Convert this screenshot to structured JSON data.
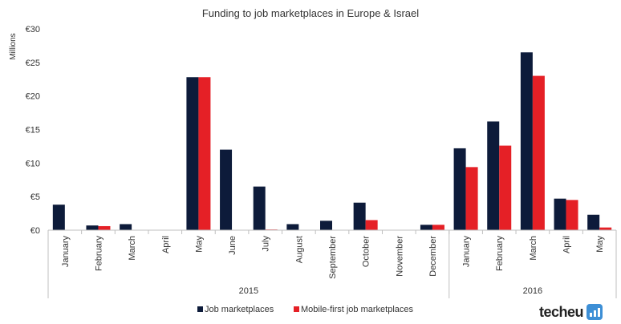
{
  "chart_data": {
    "type": "bar",
    "title": "Funding to job marketplaces in Europe & Israel",
    "ylabel": "Millions",
    "ylim": [
      0,
      30
    ],
    "yticks": [
      0,
      5,
      10,
      15,
      20,
      25,
      30
    ],
    "ytick_labels": [
      "€0",
      "€5",
      "€10",
      "€15",
      "€20",
      "€25",
      "€30"
    ],
    "categories": [
      "January",
      "February",
      "March",
      "April",
      "May",
      "June",
      "July",
      "August",
      "September",
      "October",
      "November",
      "December",
      "January",
      "February",
      "March",
      "April",
      "May"
    ],
    "groups": [
      {
        "label": "2015",
        "count": 12
      },
      {
        "label": "2016",
        "count": 5
      }
    ],
    "series": [
      {
        "name": "Job marketplaces",
        "color": "#0d1b3a",
        "values": [
          3.8,
          0.7,
          0.9,
          0,
          22.8,
          12.0,
          6.5,
          0.9,
          1.4,
          4.1,
          0,
          0.8,
          12.2,
          16.2,
          26.5,
          4.7,
          2.3
        ]
      },
      {
        "name": "Mobile-first job marketplaces",
        "color": "#e52026",
        "values": [
          0,
          0.6,
          0,
          0,
          22.8,
          0,
          0.1,
          0,
          0,
          1.5,
          0,
          0.8,
          9.4,
          12.6,
          23.0,
          4.5,
          0.4
        ]
      }
    ],
    "grid": false,
    "legend_position": "bottom-center"
  },
  "branding": {
    "logo_text": "techeu",
    "logo_icon": "bar-chart-icon"
  }
}
